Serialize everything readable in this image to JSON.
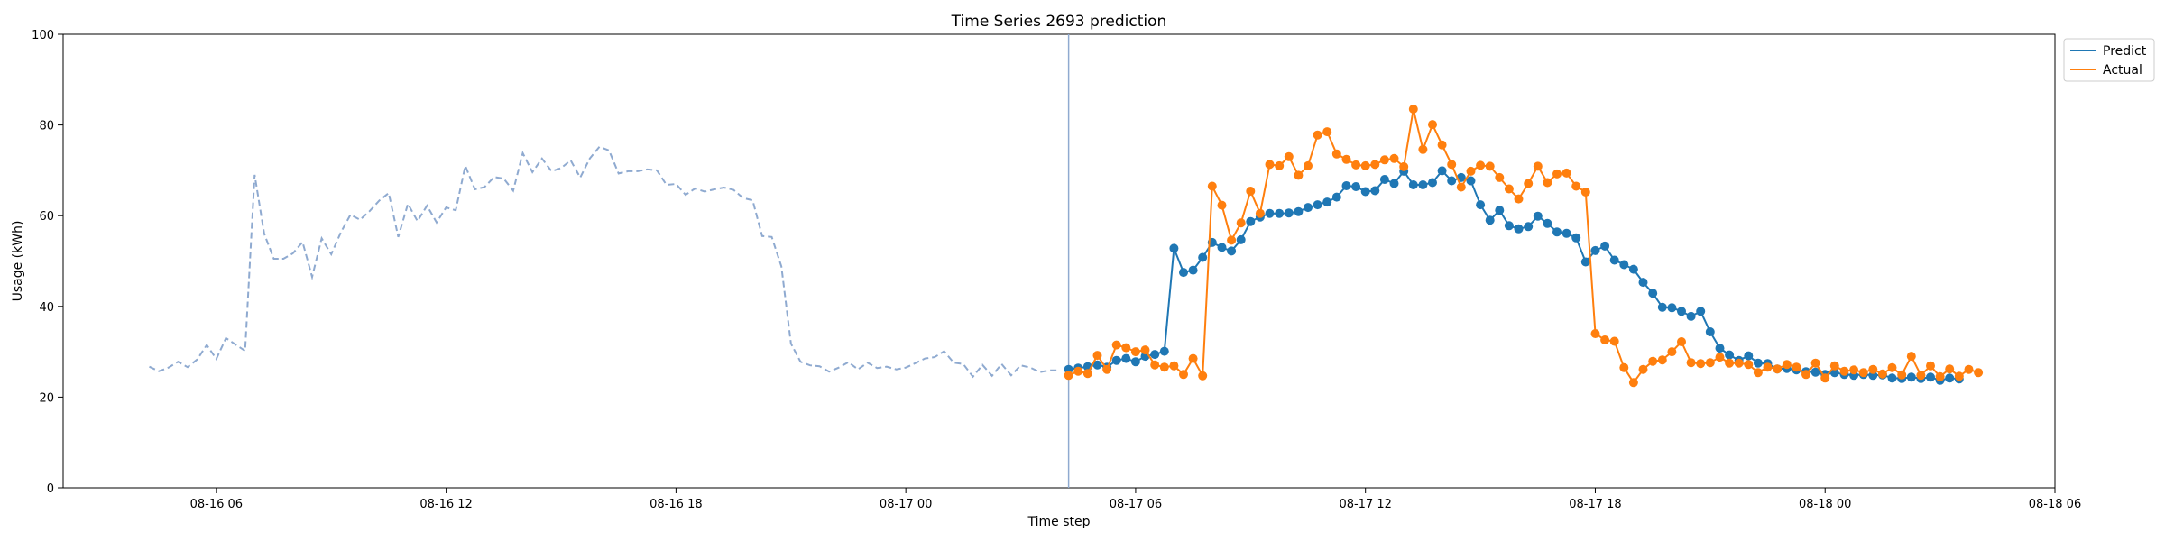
{
  "chart_data": {
    "type": "line",
    "title": "Time Series 2693 prediction",
    "xlabel": "Time step",
    "ylabel": "Usage (kWh)",
    "ylim": [
      0,
      100
    ],
    "xlim": [
      "2023-08-16T02:00",
      "2023-08-18T06:00"
    ],
    "x_ticks": [
      {
        "t": "2023-08-16T06:00",
        "label": "08-16 06"
      },
      {
        "t": "2023-08-16T12:00",
        "label": "08-16 12"
      },
      {
        "t": "2023-08-16T18:00",
        "label": "08-16 18"
      },
      {
        "t": "2023-08-17T00:00",
        "label": "08-17 00"
      },
      {
        "t": "2023-08-17T06:00",
        "label": "08-17 06"
      },
      {
        "t": "2023-08-17T12:00",
        "label": "08-17 12"
      },
      {
        "t": "2023-08-17T18:00",
        "label": "08-17 18"
      },
      {
        "t": "2023-08-18T00:00",
        "label": "08-18 00"
      },
      {
        "t": "2023-08-18T06:00",
        "label": "08-18 06"
      }
    ],
    "y_ticks": [
      0,
      20,
      40,
      60,
      80,
      100
    ],
    "grid": false,
    "legend": "upper-right-outside",
    "forecast_start": "2023-08-17T04:15",
    "colors": {
      "history": "#8faad0",
      "predict": "#1f77b4",
      "actual": "#ff7f0e",
      "divider": "#8faad0"
    },
    "history": {
      "start": "2023-08-16T04:15",
      "step_minutes": 15,
      "values": [
        26.7,
        25.7,
        26.5,
        27.8,
        26.6,
        28.3,
        31.5,
        28.4,
        33.0,
        31.6,
        30.2,
        69.0,
        56.0,
        50.5,
        50.5,
        51.7,
        54.2,
        46.5,
        55.0,
        51.5,
        56.3,
        60.2,
        59.1,
        61.0,
        63.3,
        65.0,
        55.3,
        62.6,
        58.8,
        62.2,
        58.5,
        61.8,
        61.2,
        71.0,
        65.8,
        66.3,
        68.5,
        68.2,
        65.5,
        73.8,
        69.6,
        72.6,
        69.8,
        70.5,
        72.2,
        68.4,
        72.6,
        75.2,
        74.4,
        69.3,
        69.8,
        69.8,
        70.2,
        70.0,
        66.8,
        67.0,
        64.6,
        66.0,
        65.3,
        65.8,
        66.2,
        65.7,
        63.9,
        63.4,
        55.5,
        55.3,
        48.8,
        31.8,
        27.8,
        27.0,
        26.8,
        25.6,
        26.5,
        27.7,
        26.1,
        27.6,
        26.4,
        26.7,
        26.1,
        26.5,
        27.5,
        28.5,
        28.8,
        30.1,
        27.6,
        27.3,
        24.5,
        27.1,
        24.7,
        27.3,
        24.8,
        27.0,
        26.5,
        25.5,
        25.9,
        25.9
      ]
    },
    "series": [
      {
        "name": "Predict",
        "start": "2023-08-17T04:15",
        "step_minutes": 15,
        "values": [
          26.1,
          26.4,
          26.7,
          27.1,
          26.6,
          28.1,
          28.5,
          27.8,
          29.0,
          29.4,
          30.1,
          52.8,
          47.5,
          48.0,
          50.8,
          54.1,
          53.0,
          52.2,
          54.7,
          58.7,
          59.7,
          60.5,
          60.5,
          60.6,
          60.9,
          61.8,
          62.4,
          63.0,
          64.1,
          66.6,
          66.4,
          65.3,
          65.5,
          68.0,
          67.1,
          69.8,
          66.8,
          66.8,
          67.3,
          69.9,
          67.7,
          68.4,
          67.7,
          62.4,
          59.0,
          61.2,
          57.8,
          57.1,
          57.6,
          59.9,
          58.3,
          56.4,
          56.1,
          55.1,
          49.8,
          52.3,
          53.3,
          50.2,
          49.2,
          48.2,
          45.3,
          42.9,
          39.8,
          39.7,
          38.9,
          37.8,
          38.9,
          34.4,
          30.8,
          29.3,
          28.1,
          29.1,
          27.5,
          27.4,
          26.2,
          26.3,
          26.0,
          25.6,
          25.5,
          25.0,
          25.4,
          25.0,
          24.8,
          25.0,
          24.8,
          24.9,
          24.2,
          24.1,
          24.4,
          24.1,
          24.4,
          23.7,
          24.2,
          24.0
        ]
      },
      {
        "name": "Actual",
        "start": "2023-08-17T04:15",
        "step_minutes": 15,
        "values": [
          24.8,
          25.7,
          25.2,
          29.2,
          26.1,
          31.5,
          30.9,
          30.0,
          30.4,
          27.1,
          26.6,
          26.9,
          25.0,
          28.5,
          24.7,
          66.5,
          62.3,
          54.6,
          58.4,
          65.4,
          60.5,
          71.3,
          71.0,
          73.0,
          68.9,
          71.0,
          77.8,
          78.5,
          73.6,
          72.4,
          71.2,
          71.0,
          71.3,
          72.3,
          72.6,
          70.8,
          83.5,
          74.6,
          80.1,
          75.6,
          71.3,
          66.3,
          69.8,
          71.1,
          70.9,
          68.4,
          65.9,
          63.7,
          67.1,
          70.9,
          67.3,
          69.2,
          69.4,
          66.5,
          65.2,
          34.0,
          32.6,
          32.3,
          26.5,
          23.2,
          26.1,
          27.9,
          28.2,
          30.0,
          32.2,
          27.6,
          27.4,
          27.6,
          28.8,
          27.5,
          27.5,
          27.2,
          25.4,
          26.6,
          26.2,
          27.2,
          26.6,
          25.0,
          27.5,
          24.2,
          26.9,
          25.7,
          26.0,
          25.4,
          26.1,
          25.1,
          26.5,
          24.9,
          29.0,
          24.8,
          26.9,
          24.5,
          26.2,
          24.6,
          26.1,
          25.4
        ]
      }
    ]
  }
}
